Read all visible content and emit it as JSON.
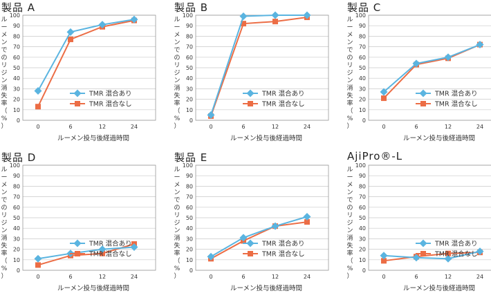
{
  "y_label_chars": [
    "ル",
    "ー",
    "メ",
    "ン",
    "で",
    "の",
    "リ",
    "ジ",
    "ン",
    "消",
    "失",
    "率",
    "（",
    "%",
    "）"
  ],
  "x_axis_label": "ルーメン投与後経過時間",
  "legend": [
    "TMR 混合あり",
    "TMR 混合なし"
  ],
  "colors": {
    "with_tmr": "#5ab4e0",
    "without_tmr": "#ec6d45"
  },
  "chart_data": [
    {
      "type": "line",
      "title": "製品 A",
      "x": [
        "0",
        "6",
        "12",
        "24"
      ],
      "ylim": [
        0,
        100
      ],
      "yticks": [
        0,
        10,
        20,
        30,
        40,
        50,
        60,
        70,
        80,
        90,
        100
      ],
      "ylabel": "ルーメンでのリジン消失率（%）",
      "xlabel": "ルーメン投与後経過時間",
      "series": [
        {
          "name": "TMR 混合あり",
          "values": [
            28,
            84,
            91,
            96
          ]
        },
        {
          "name": "TMR 混合なし",
          "values": [
            13,
            77,
            89,
            95
          ]
        }
      ]
    },
    {
      "type": "line",
      "title": "製品 B",
      "x": [
        "0",
        "6",
        "12",
        "24"
      ],
      "ylim": [
        0,
        100
      ],
      "yticks": [
        0,
        10,
        20,
        30,
        40,
        50,
        60,
        70,
        80,
        90,
        100
      ],
      "ylabel": "ルーメンでのリジン消失率（%）",
      "xlabel": "ルーメン投与後経過時間",
      "series": [
        {
          "name": "TMR 混合あり",
          "values": [
            5,
            99,
            100,
            100
          ]
        },
        {
          "name": "TMR 混合なし",
          "values": [
            4,
            92,
            94,
            98
          ]
        }
      ]
    },
    {
      "type": "line",
      "title": "製品 C",
      "x": [
        "0",
        "6",
        "12",
        "24"
      ],
      "ylim": [
        0,
        100
      ],
      "yticks": [
        0,
        10,
        20,
        30,
        40,
        50,
        60,
        70,
        80,
        90,
        100
      ],
      "ylabel": "ルーメンでのリジン消失率（%）",
      "xlabel": "ルーメン投与後経過時間",
      "series": [
        {
          "name": "TMR 混合あり",
          "values": [
            27,
            54,
            60,
            72
          ]
        },
        {
          "name": "TMR 混合なし",
          "values": [
            21,
            53,
            59,
            72
          ]
        }
      ]
    },
    {
      "type": "line",
      "title": "製品 D",
      "x": [
        "0",
        "6",
        "12",
        "24"
      ],
      "ylim": [
        0,
        100
      ],
      "yticks": [
        0,
        10,
        20,
        30,
        40,
        50,
        60,
        70,
        80,
        90,
        100
      ],
      "ylabel": "ルーメンでのリジン消失率（%）",
      "xlabel": "ルーメン投与後経過時間",
      "series": [
        {
          "name": "TMR 混合あり",
          "values": [
            11,
            16,
            20,
            22
          ]
        },
        {
          "name": "TMR 混合なし",
          "values": [
            5,
            14,
            16,
            25
          ]
        }
      ]
    },
    {
      "type": "line",
      "title": "製品 E",
      "x": [
        "0",
        "6",
        "12",
        "24"
      ],
      "ylim": [
        0,
        100
      ],
      "yticks": [
        0,
        10,
        20,
        30,
        40,
        50,
        60,
        70,
        80,
        90,
        100
      ],
      "ylabel": "ルーメンでのリジン消失率（%）",
      "xlabel": "ルーメン投与後経過時間",
      "series": [
        {
          "name": "TMR 混合あり",
          "values": [
            13,
            31,
            42,
            51
          ]
        },
        {
          "name": "TMR 混合なし",
          "values": [
            11,
            28,
            42,
            46
          ]
        }
      ]
    },
    {
      "type": "line",
      "title": "AjiPro®-L",
      "x": [
        "0",
        "6",
        "12",
        "24"
      ],
      "ylim": [
        0,
        100
      ],
      "yticks": [
        0,
        10,
        20,
        30,
        40,
        50,
        60,
        70,
        80,
        90,
        100
      ],
      "ylabel": "ルーメンでのリジン消失率（%）",
      "xlabel": "ルーメン投与後経過時間",
      "series": [
        {
          "name": "TMR 混合あり",
          "values": [
            14,
            12,
            11,
            18
          ]
        },
        {
          "name": "TMR 混合なし",
          "values": [
            9,
            13,
            16,
            17
          ]
        }
      ]
    }
  ]
}
